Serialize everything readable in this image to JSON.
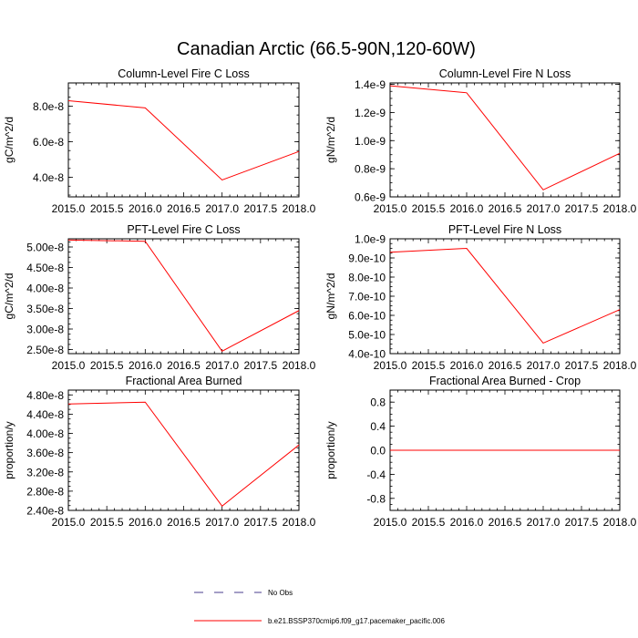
{
  "figure": {
    "title": "Canadian Arctic (66.5-90N,120-60W)",
    "colors": {
      "model_line": "#ff0000",
      "obs_line": "#4a3c8c",
      "axis": "#000000"
    }
  },
  "legend": {
    "entries": [
      {
        "label": "No Obs",
        "style": "dashed",
        "color": "#4a3c8c"
      },
      {
        "label": "b.e21.BSSP370cmip6.f09_g17.pacemaker_pacific.006",
        "style": "solid",
        "color": "#ff0000"
      }
    ]
  },
  "chart_data": [
    {
      "type": "line",
      "title": "Column-Level Fire C Loss",
      "ylabel": "gC/m^2/d",
      "xlim": [
        2015.0,
        2018.0
      ],
      "ylim": [
        2.9e-08,
        9.3e-08
      ],
      "x_ticks": [
        "2015.0",
        "2015.5",
        "2016.0",
        "2016.5",
        "2017.0",
        "2017.5",
        "2018.0"
      ],
      "y_ticks": [
        {
          "v": 4e-08,
          "label": "4.0e-8"
        },
        {
          "v": 6e-08,
          "label": "6.0e-8"
        },
        {
          "v": 8e-08,
          "label": "8.0e-8"
        }
      ],
      "series": [
        {
          "name": "b.e21.BSSP370cmip6.f09_g17.pacemaker_pacific.006",
          "x": [
            2015,
            2016,
            2017,
            2018
          ],
          "y": [
            8.3e-08,
            7.9e-08,
            3.85e-08,
            5.45e-08
          ]
        }
      ]
    },
    {
      "type": "line",
      "title": "Column-Level Fire N Loss",
      "ylabel": "gN/m^2/d",
      "xlim": [
        2015.0,
        2018.0
      ],
      "ylim": [
        6e-10,
        1.41e-09
      ],
      "x_ticks": [
        "2015.0",
        "2015.5",
        "2016.0",
        "2016.5",
        "2017.0",
        "2017.5",
        "2018.0"
      ],
      "y_ticks": [
        {
          "v": 6e-10,
          "label": "0.6e-9"
        },
        {
          "v": 8e-10,
          "label": "0.8e-9"
        },
        {
          "v": 1e-09,
          "label": "1.0e-9"
        },
        {
          "v": 1.2e-09,
          "label": "1.2e-9"
        },
        {
          "v": 1.4e-09,
          "label": "1.4e-9"
        }
      ],
      "series": [
        {
          "name": "b.e21.BSSP370cmip6.f09_g17.pacemaker_pacific.006",
          "x": [
            2015,
            2016,
            2017,
            2018
          ],
          "y": [
            1.39e-09,
            1.34e-09,
            6.5e-10,
            9.1e-10
          ]
        }
      ]
    },
    {
      "type": "line",
      "title": "PFT-Level Fire C Loss",
      "ylabel": "gC/m^2/d",
      "xlim": [
        2015.0,
        2018.0
      ],
      "ylim": [
        2.4e-08,
        5.2e-08
      ],
      "x_ticks": [
        "2015.0",
        "2015.5",
        "2016.0",
        "2016.5",
        "2017.0",
        "2017.5",
        "2018.0"
      ],
      "y_ticks": [
        {
          "v": 2.5e-08,
          "label": "2.50e-8"
        },
        {
          "v": 3e-08,
          "label": "3.00e-8"
        },
        {
          "v": 3.5e-08,
          "label": "3.50e-8"
        },
        {
          "v": 4e-08,
          "label": "4.00e-8"
        },
        {
          "v": 4.5e-08,
          "label": "4.50e-8"
        },
        {
          "v": 5e-08,
          "label": "5.00e-8"
        }
      ],
      "series": [
        {
          "name": "b.e21.BSSP370cmip6.f09_g17.pacemaker_pacific.006",
          "x": [
            2015,
            2016,
            2017,
            2018
          ],
          "y": [
            5.17e-08,
            5.14e-08,
            2.46e-08,
            3.45e-08
          ]
        }
      ]
    },
    {
      "type": "line",
      "title": "PFT-Level Fire N Loss",
      "ylabel": "gN/m^2/d",
      "xlim": [
        2015.0,
        2018.0
      ],
      "ylim": [
        4e-10,
        1e-09
      ],
      "x_ticks": [
        "2015.0",
        "2015.5",
        "2016.0",
        "2016.5",
        "2017.0",
        "2017.5",
        "2018.0"
      ],
      "y_ticks": [
        {
          "v": 4e-10,
          "label": "4.0e-10"
        },
        {
          "v": 5e-10,
          "label": "5.0e-10"
        },
        {
          "v": 6e-10,
          "label": "6.0e-10"
        },
        {
          "v": 7e-10,
          "label": "7.0e-10"
        },
        {
          "v": 8e-10,
          "label": "8.0e-10"
        },
        {
          "v": 9e-10,
          "label": "9.0e-10"
        },
        {
          "v": 1e-09,
          "label": "1.0e-9"
        }
      ],
      "series": [
        {
          "name": "b.e21.BSSP370cmip6.f09_g17.pacemaker_pacific.006",
          "x": [
            2015,
            2016,
            2017,
            2018
          ],
          "y": [
            9.3e-10,
            9.5e-10,
            4.55e-10,
            6.3e-10
          ]
        }
      ]
    },
    {
      "type": "line",
      "title": "Fractional Area Burned",
      "ylabel": "proportion/y",
      "xlim": [
        2015.0,
        2018.0
      ],
      "ylim": [
        2.4e-08,
        4.9e-08
      ],
      "x_ticks": [
        "2015.0",
        "2015.5",
        "2016.0",
        "2016.5",
        "2017.0",
        "2017.5",
        "2018.0"
      ],
      "y_ticks": [
        {
          "v": 2.4e-08,
          "label": "2.40e-8"
        },
        {
          "v": 2.8e-08,
          "label": "2.80e-8"
        },
        {
          "v": 3.2e-08,
          "label": "3.20e-8"
        },
        {
          "v": 3.6e-08,
          "label": "3.60e-8"
        },
        {
          "v": 4e-08,
          "label": "4.00e-8"
        },
        {
          "v": 4.4e-08,
          "label": "4.40e-8"
        },
        {
          "v": 4.8e-08,
          "label": "4.80e-8"
        }
      ],
      "series": [
        {
          "name": "b.e21.BSSP370cmip6.f09_g17.pacemaker_pacific.006",
          "x": [
            2015,
            2016,
            2017,
            2018
          ],
          "y": [
            4.61e-08,
            4.65e-08,
            2.49e-08,
            3.76e-08
          ]
        }
      ]
    },
    {
      "type": "line",
      "title": "Fractional Area Burned - Crop",
      "ylabel": "proportion/y",
      "xlim": [
        2015.0,
        2018.0
      ],
      "ylim": [
        -1.0,
        1.0
      ],
      "x_ticks": [
        "2015.0",
        "2015.5",
        "2016.0",
        "2016.5",
        "2017.0",
        "2017.5",
        "2018.0"
      ],
      "y_ticks": [
        {
          "v": -0.8,
          "label": "-0.8"
        },
        {
          "v": -0.4,
          "label": "-0.4"
        },
        {
          "v": 0.0,
          "label": "0.0"
        },
        {
          "v": 0.4,
          "label": "0.4"
        },
        {
          "v": 0.8,
          "label": "0.8"
        }
      ],
      "series": [
        {
          "name": "b.e21.BSSP370cmip6.f09_g17.pacemaker_pacific.006",
          "x": [
            2015,
            2016,
            2017,
            2018
          ],
          "y": [
            0,
            0,
            0,
            0
          ]
        }
      ]
    }
  ]
}
